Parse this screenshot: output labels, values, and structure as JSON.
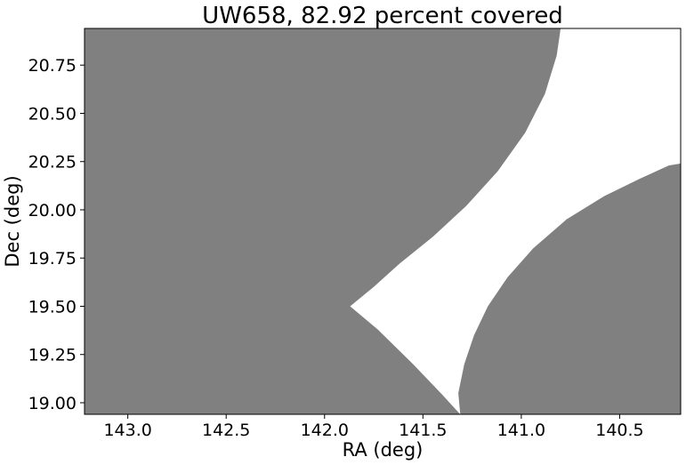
{
  "chart_data": {
    "type": "area",
    "title": "UW658, 82.92 percent covered",
    "xlabel": "RA (deg)",
    "ylabel": "Dec (deg)",
    "xlim": [
      143.22,
      140.19
    ],
    "ylim": [
      18.94,
      20.94
    ],
    "x_inverted": true,
    "x_ticks": [
      143.0,
      142.5,
      142.0,
      141.5,
      141.0,
      140.5
    ],
    "x_tick_labels": [
      "143.0",
      "142.5",
      "142.0",
      "141.5",
      "141.0",
      "140.5"
    ],
    "y_ticks": [
      19.0,
      19.25,
      19.5,
      19.75,
      20.0,
      20.25,
      20.5,
      20.75
    ],
    "y_tick_labels": [
      "19.00",
      "19.25",
      "19.50",
      "19.75",
      "20.00",
      "20.25",
      "20.50",
      "20.75"
    ],
    "grid": false,
    "legend": "none",
    "fill_color": "#808080",
    "background_color": "#ffffff",
    "regions": [
      {
        "points": [
          [
            143.22,
            20.94
          ],
          [
            140.8,
            20.94
          ],
          [
            140.82,
            20.8
          ],
          [
            140.88,
            20.6
          ],
          [
            140.98,
            20.4
          ],
          [
            141.12,
            20.2
          ],
          [
            141.28,
            20.02
          ],
          [
            141.45,
            19.86
          ],
          [
            141.62,
            19.72
          ],
          [
            141.75,
            19.6
          ],
          [
            141.87,
            19.5
          ],
          [
            141.73,
            19.38
          ],
          [
            141.55,
            19.2
          ],
          [
            141.4,
            19.04
          ],
          [
            141.31,
            18.94
          ],
          [
            143.22,
            18.94
          ]
        ]
      },
      {
        "points": [
          [
            141.31,
            18.94
          ],
          [
            141.32,
            19.05
          ],
          [
            141.29,
            19.2
          ],
          [
            141.24,
            19.35
          ],
          [
            141.17,
            19.5
          ],
          [
            141.07,
            19.65
          ],
          [
            140.94,
            19.8
          ],
          [
            140.77,
            19.95
          ],
          [
            140.58,
            20.07
          ],
          [
            140.4,
            20.16
          ],
          [
            140.25,
            20.23
          ],
          [
            140.19,
            20.24
          ],
          [
            140.19,
            18.94
          ]
        ]
      }
    ]
  }
}
